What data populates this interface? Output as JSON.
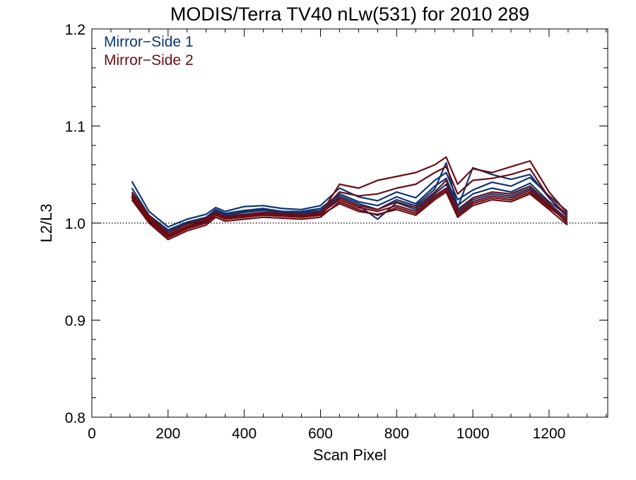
{
  "chart_data": {
    "type": "line",
    "title": "MODIS/Terra TV40 nLw(531) for 2010 289",
    "xlabel": "Scan Pixel",
    "ylabel": "L2/L3",
    "xlim": [
      0,
      1354
    ],
    "ylim": [
      0.8,
      1.2
    ],
    "xticks": [
      0,
      200,
      400,
      600,
      800,
      1000,
      1200
    ],
    "xtick_labels": [
      "0",
      "200",
      "400",
      "600",
      "800",
      "1000",
      "1200"
    ],
    "yticks": [
      0.8,
      0.9,
      1.0,
      1.1,
      1.2
    ],
    "ytick_labels": [
      "0.8",
      "0.9",
      "1.0",
      "1.1",
      "1.2"
    ],
    "reference_line": 1.0,
    "legend_placement": "top-left",
    "grid": false,
    "x": [
      105,
      150,
      200,
      250,
      300,
      325,
      350,
      400,
      450,
      500,
      550,
      600,
      650,
      700,
      750,
      800,
      850,
      900,
      930,
      960,
      1000,
      1050,
      1100,
      1150,
      1200,
      1248
    ],
    "series": [
      {
        "name": "Mirror−Side 1",
        "color": "#0d3573",
        "values": [
          1.043,
          1.012,
          0.996,
          1.004,
          1.009,
          1.016,
          1.012,
          1.017,
          1.018,
          1.015,
          1.014,
          1.018,
          1.036,
          1.027,
          1.023,
          1.032,
          1.026,
          1.044,
          1.052,
          1.024,
          1.034,
          1.042,
          1.038,
          1.047,
          1.028,
          1.012
        ]
      },
      {
        "name": "Mirror−Side 1",
        "color": "#0d3573",
        "values": [
          1.036,
          1.008,
          0.993,
          1.001,
          1.006,
          1.014,
          1.01,
          1.013,
          1.015,
          1.012,
          1.012,
          1.015,
          1.03,
          1.022,
          1.018,
          1.027,
          1.02,
          1.038,
          1.046,
          1.018,
          1.03,
          1.036,
          1.032,
          1.041,
          1.022,
          1.008
        ]
      },
      {
        "name": "Mirror−Side 1",
        "color": "#0d3573",
        "values": [
          1.03,
          1.005,
          0.99,
          0.999,
          1.004,
          1.012,
          1.008,
          1.011,
          1.013,
          1.01,
          1.01,
          1.012,
          1.026,
          1.018,
          1.004,
          1.021,
          1.014,
          1.03,
          1.04,
          1.012,
          1.024,
          1.03,
          1.028,
          1.036,
          1.018,
          1.004
        ]
      },
      {
        "name": "Mirror−Side 1",
        "color": "#0d3573",
        "values": [
          1.028,
          1.003,
          0.992,
          1.0,
          1.005,
          1.013,
          1.009,
          1.012,
          1.014,
          1.011,
          1.011,
          1.013,
          1.028,
          1.02,
          1.014,
          1.024,
          1.018,
          1.035,
          1.062,
          1.016,
          1.057,
          1.05,
          1.045,
          1.05,
          1.026,
          1.006
        ]
      },
      {
        "name": "Mirror−Side 2",
        "color": "#6b0d16",
        "values": [
          1.03,
          1.006,
          0.988,
          0.997,
          1.003,
          1.01,
          1.006,
          1.008,
          1.01,
          1.009,
          1.008,
          1.01,
          1.024,
          1.016,
          1.012,
          1.018,
          1.012,
          1.028,
          1.036,
          1.01,
          1.022,
          1.028,
          1.026,
          1.034,
          1.018,
          1.0
        ]
      },
      {
        "name": "Mirror−Side 2",
        "color": "#6b0d16",
        "values": [
          1.026,
          1.002,
          0.985,
          0.994,
          1.0,
          1.008,
          1.004,
          1.006,
          1.008,
          1.007,
          1.006,
          1.008,
          1.02,
          1.012,
          1.009,
          1.014,
          1.008,
          1.024,
          1.032,
          1.006,
          1.018,
          1.024,
          1.022,
          1.03,
          1.014,
          0.998
        ]
      },
      {
        "name": "Mirror−Side 2",
        "color": "#6b0d16",
        "values": [
          1.028,
          1.004,
          0.987,
          0.996,
          1.002,
          1.009,
          1.005,
          1.007,
          1.009,
          1.008,
          1.007,
          1.009,
          1.04,
          1.036,
          1.044,
          1.048,
          1.052,
          1.06,
          1.068,
          1.04,
          1.056,
          1.052,
          1.058,
          1.064,
          1.032,
          1.01
        ]
      },
      {
        "name": "Mirror−Side 2",
        "color": "#6b0d16",
        "values": [
          1.032,
          1.008,
          0.99,
          0.999,
          1.005,
          1.011,
          1.007,
          1.009,
          1.011,
          1.01,
          1.009,
          1.011,
          1.032,
          1.028,
          1.03,
          1.036,
          1.04,
          1.052,
          1.058,
          1.03,
          1.044,
          1.046,
          1.05,
          1.056,
          1.026,
          1.008
        ]
      },
      {
        "name": "Mirror−Side 2",
        "color": "#6b0d16",
        "values": [
          1.024,
          1.0,
          0.983,
          0.992,
          0.998,
          1.006,
          1.002,
          1.004,
          1.006,
          1.005,
          1.004,
          1.006,
          1.022,
          1.014,
          1.008,
          1.016,
          1.01,
          1.026,
          1.034,
          1.008,
          1.02,
          1.026,
          1.024,
          1.032,
          1.016,
          1.002
        ]
      },
      {
        "name": "Mirror−Side 2",
        "color": "#6b0d16",
        "values": [
          1.027,
          1.003,
          0.986,
          0.995,
          1.001,
          1.009,
          1.005,
          1.007,
          1.009,
          1.008,
          1.007,
          1.009,
          1.026,
          1.018,
          1.014,
          1.022,
          1.016,
          1.032,
          1.044,
          1.014,
          1.026,
          1.032,
          1.03,
          1.038,
          1.02,
          1.004
        ]
      }
    ],
    "legend": [
      {
        "label": "Mirror−Side 1",
        "color": "#0d3573"
      },
      {
        "label": "Mirror−Side 2",
        "color": "#6b0d16"
      }
    ]
  }
}
